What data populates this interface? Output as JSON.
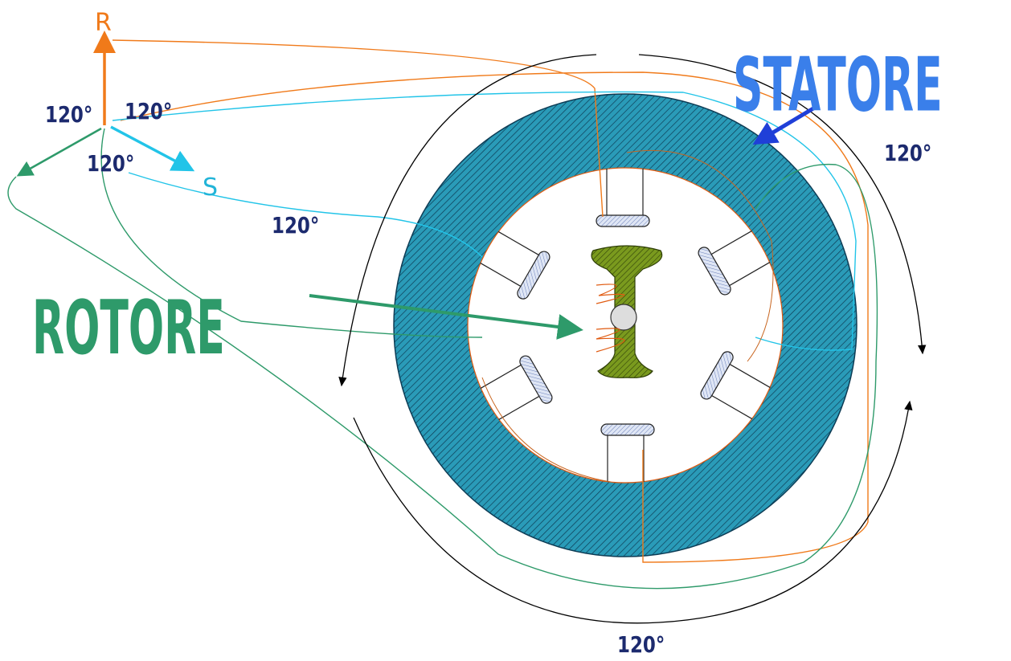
{
  "phasor": {
    "r_label": "R",
    "s_label": "S",
    "angles": [
      "120°",
      "120°",
      "120°"
    ]
  },
  "stator": {
    "label": "STATORE",
    "angles": [
      "120°",
      "120°",
      "120°"
    ]
  },
  "rotor": {
    "label": "ROTORE"
  }
}
